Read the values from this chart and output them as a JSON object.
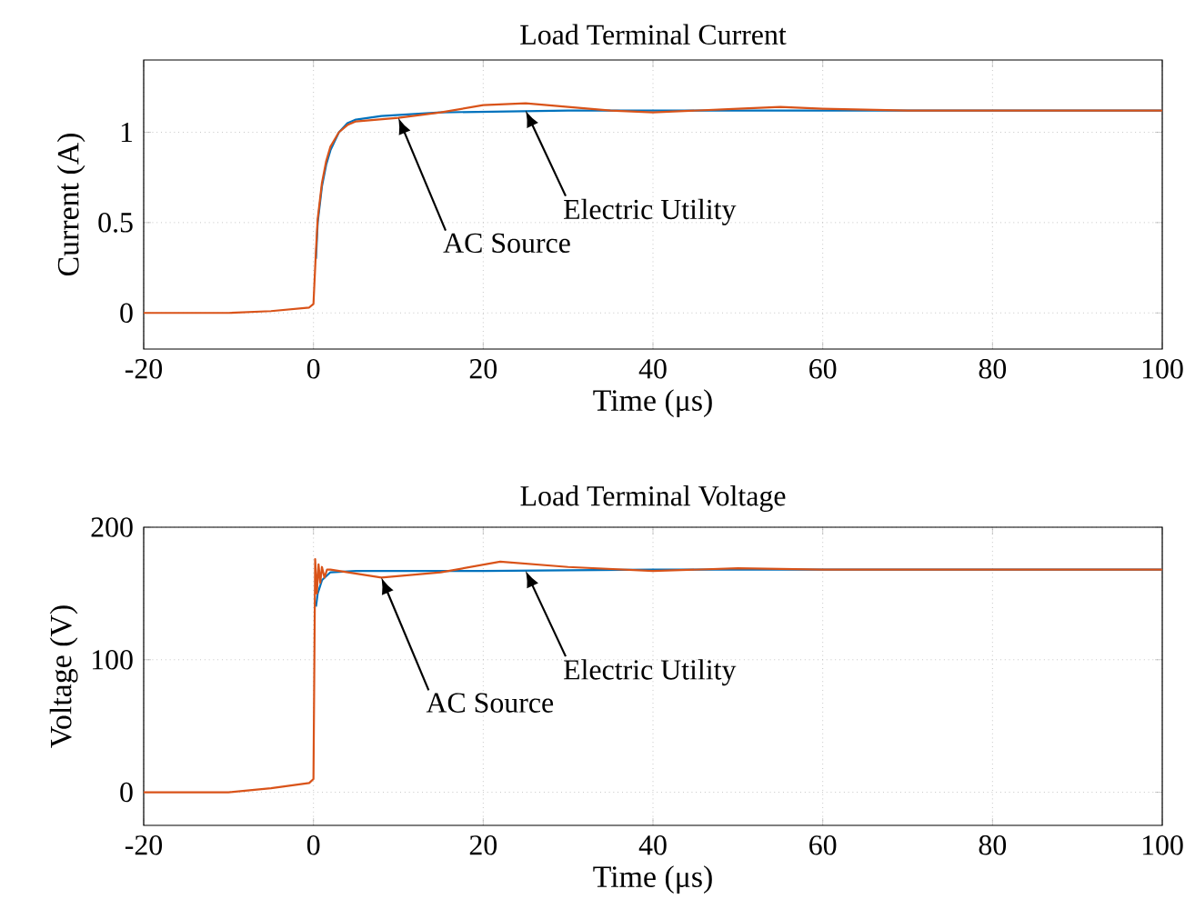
{
  "chart_data": [
    {
      "type": "line",
      "title": "Load Terminal Current",
      "xlabel": "Time (μs)",
      "ylabel": "Current (A)",
      "xlim": [
        -20,
        100
      ],
      "ylim": [
        -0.2,
        1.4
      ],
      "xticks": [
        -20,
        0,
        20,
        40,
        60,
        80,
        100
      ],
      "yticks": [
        0,
        0.5,
        1
      ],
      "grid": true,
      "series": [
        {
          "color": "#0072bd",
          "x": [
            0.3,
            0.5,
            1,
            1.5,
            2,
            3,
            4,
            5,
            8,
            15,
            30,
            60,
            100
          ],
          "values": [
            0.3,
            0.5,
            0.7,
            0.82,
            0.9,
            1.0,
            1.05,
            1.07,
            1.09,
            1.11,
            1.12,
            1.12,
            1.12
          ]
        },
        {
          "color": "#d95319",
          "x": [
            -20,
            -10,
            -5,
            -0.5,
            0,
            0.3,
            0.5,
            1,
            1.5,
            2,
            3,
            4,
            5,
            10,
            15,
            20,
            25,
            30,
            35,
            40,
            50,
            55,
            60,
            70,
            100
          ],
          "values": [
            0,
            0,
            0.01,
            0.03,
            0.05,
            0.35,
            0.52,
            0.72,
            0.84,
            0.92,
            1.0,
            1.04,
            1.06,
            1.08,
            1.11,
            1.15,
            1.16,
            1.14,
            1.12,
            1.11,
            1.13,
            1.14,
            1.13,
            1.12,
            1.12
          ]
        }
      ],
      "annotations": [
        {
          "text": "AC Source",
          "x": 10,
          "y": 1.08
        },
        {
          "text": "Electric Utility",
          "x": 25,
          "y": 1.12
        }
      ]
    },
    {
      "type": "line",
      "title": "Load Terminal Voltage",
      "xlabel": "Time (μs)",
      "ylabel": "Voltage (V)",
      "xlim": [
        -20,
        100
      ],
      "ylim": [
        -25,
        200
      ],
      "xticks": [
        -20,
        0,
        20,
        40,
        60,
        80,
        100
      ],
      "yticks": [
        0,
        100,
        200
      ],
      "grid": true,
      "series": [
        {
          "color": "#0072bd",
          "x": [
            0.3,
            0.5,
            1,
            2,
            5,
            20,
            40,
            100
          ],
          "values": [
            140,
            150,
            160,
            166,
            167,
            167,
            168,
            168
          ]
        },
        {
          "color": "#d95319",
          "x": [
            -20,
            -10,
            -5,
            -0.5,
            0,
            0.2,
            0.4,
            0.6,
            0.8,
            1.0,
            1.3,
            1.6,
            2,
            5,
            8,
            15,
            22,
            30,
            40,
            50,
            60,
            100
          ],
          "values": [
            0,
            0,
            3,
            7,
            10,
            176,
            150,
            172,
            158,
            170,
            162,
            168,
            168,
            165,
            162,
            166,
            174,
            170,
            167,
            169,
            168,
            168
          ]
        }
      ],
      "annotations": [
        {
          "text": "AC Source",
          "x": 8,
          "y": 162
        },
        {
          "text": "Electric Utility",
          "x": 25,
          "y": 167
        }
      ]
    }
  ]
}
